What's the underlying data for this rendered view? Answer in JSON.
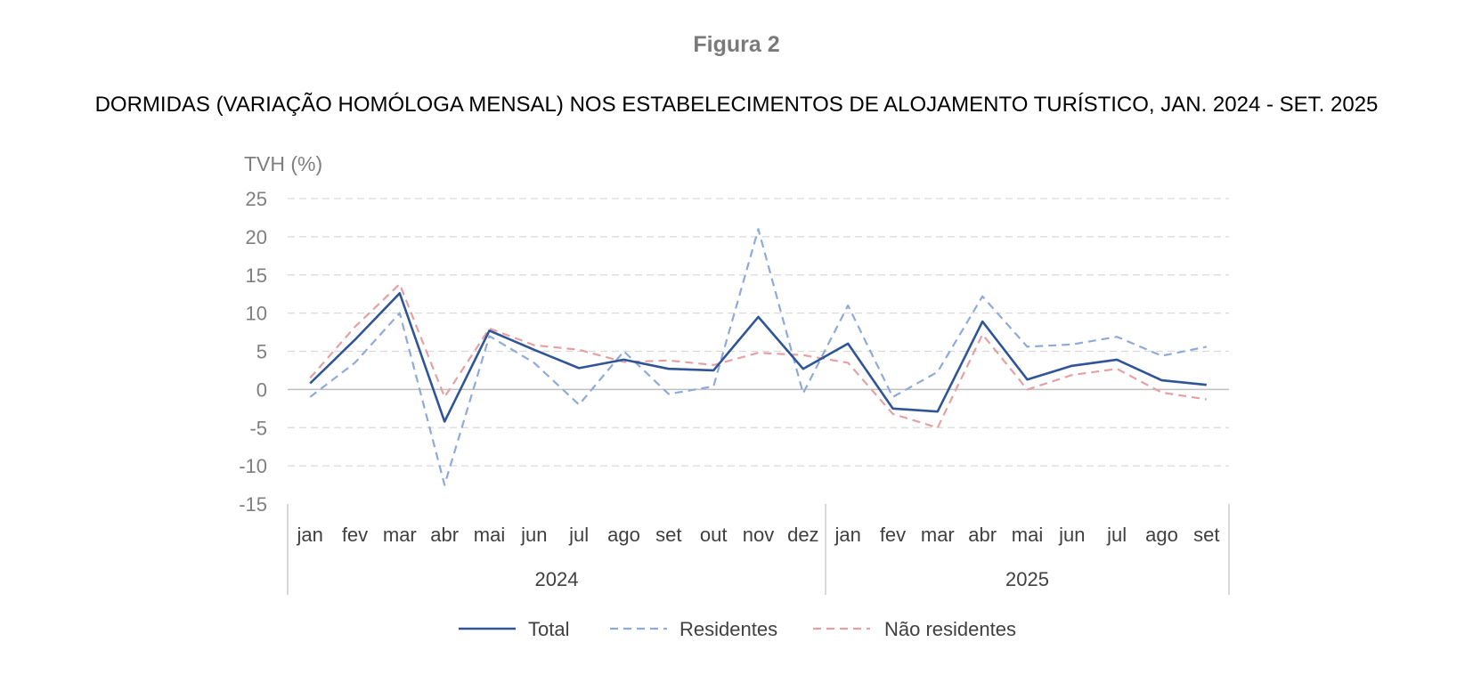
{
  "figure": {
    "label": "Figura 2"
  },
  "chart_data": {
    "type": "line",
    "title": "DORMIDAS (VARIAÇÃO HOMÓLOGA MENSAL) NOS ESTABELECIMENTOS DE ALOJAMENTO TURÍSTICO, JAN. 2024 - SET. 2025",
    "ylabel": "TVH (%)",
    "xlabel": "",
    "ylim": [
      -15,
      25
    ],
    "yticks": [
      25,
      20,
      15,
      10,
      5,
      0,
      -5,
      -10,
      -15
    ],
    "grid": true,
    "legend_position": "bottom",
    "categories": [
      "jan",
      "fev",
      "mar",
      "abr",
      "mai",
      "jun",
      "jul",
      "ago",
      "set",
      "out",
      "nov",
      "dez",
      "jan",
      "fev",
      "mar",
      "abr",
      "mai",
      "jun",
      "jul",
      "ago",
      "set"
    ],
    "groups": [
      {
        "label": "2024",
        "count": 12
      },
      {
        "label": "2025",
        "count": 9
      }
    ],
    "series": [
      {
        "name": "Total",
        "color": "#2f5597",
        "style": "solid",
        "values": [
          0.8,
          6.5,
          12.6,
          -4.2,
          7.7,
          5.2,
          2.8,
          3.9,
          2.7,
          2.5,
          9.5,
          2.7,
          6.0,
          -2.5,
          -2.9,
          8.9,
          1.3,
          3.1,
          3.9,
          1.2,
          0.6
        ]
      },
      {
        "name": "Residentes",
        "color": "#8eaadb",
        "style": "dashed",
        "values": [
          -1.0,
          3.5,
          10.0,
          -12.5,
          7.0,
          3.5,
          -2.0,
          5.0,
          -0.6,
          0.4,
          21.0,
          -0.5,
          11.0,
          -1.0,
          2.3,
          12.2,
          5.6,
          5.9,
          6.9,
          4.4,
          5.6
        ]
      },
      {
        "name": "Não residentes",
        "color": "#e6a0a4",
        "style": "dashed",
        "values": [
          1.5,
          8.2,
          13.8,
          -1.0,
          8.0,
          5.8,
          5.2,
          3.6,
          3.8,
          3.2,
          4.8,
          4.5,
          3.5,
          -3.2,
          -5.0,
          7.2,
          0.0,
          1.9,
          2.7,
          -0.4,
          -1.3
        ]
      }
    ]
  }
}
